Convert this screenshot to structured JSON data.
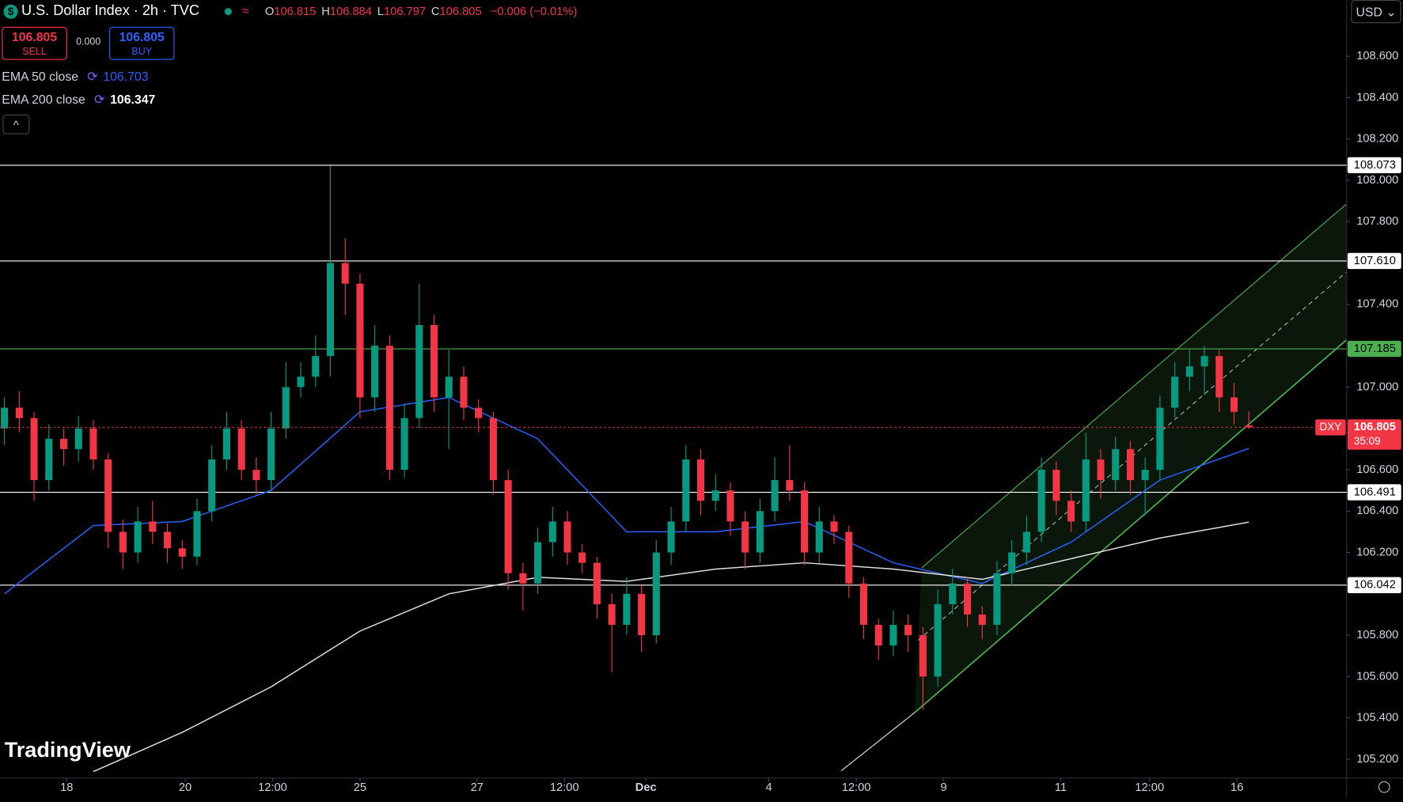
{
  "header": {
    "title": "U.S. Dollar Index · 2h · TVC",
    "ohlc": [
      {
        "label": "O",
        "value": "106.815"
      },
      {
        "label": "H",
        "value": "106.884"
      },
      {
        "label": "L",
        "value": "106.797"
      },
      {
        "label": "C",
        "value": "106.805"
      }
    ],
    "change": "−0.006 (−0.01%)",
    "sell": {
      "price": "106.805",
      "label": "SELL"
    },
    "spread": "0.000",
    "buy": {
      "price": "106.805",
      "label": "BUY"
    },
    "indicators": [
      {
        "name": "EMA 50 close",
        "value": "106.703"
      },
      {
        "name": "EMA 200 close",
        "value": "106.347"
      }
    ],
    "currency": "USD",
    "logo": "TradingView"
  },
  "chart_data": {
    "type": "candlestick",
    "up_color": "#089981",
    "down_color": "#f23645",
    "ylim": [
      105.109,
      108.872
    ],
    "yticks": [
      {
        "value": 105.2,
        "label": "105.200"
      },
      {
        "value": 105.4,
        "label": "105.400"
      },
      {
        "value": 105.6,
        "label": "105.600"
      },
      {
        "value": 105.8,
        "label": "105.800"
      },
      {
        "value": 106.2,
        "label": "106.200"
      },
      {
        "value": 106.4,
        "label": "106.400"
      },
      {
        "value": 106.6,
        "label": "106.600"
      },
      {
        "value": 107,
        "label": "107.000"
      },
      {
        "value": 107.4,
        "label": "107.400"
      },
      {
        "value": 107.8,
        "label": "107.800"
      },
      {
        "value": 108,
        "label": "108.000"
      },
      {
        "value": 108.2,
        "label": "108.200"
      },
      {
        "value": 108.4,
        "label": "108.400"
      },
      {
        "value": 108.6,
        "label": "108.600"
      }
    ],
    "xlim": [
      -0.3,
      90.6
    ],
    "xticks": [
      {
        "value": 4.2,
        "label": "18"
      },
      {
        "value": 12.2,
        "label": "20"
      },
      {
        "value": 18.1,
        "label": "12:00"
      },
      {
        "value": 24,
        "label": "25"
      },
      {
        "value": 31.9,
        "label": "27"
      },
      {
        "value": 37.8,
        "label": "12:00"
      },
      {
        "value": 43.3,
        "label": "Dec"
      },
      {
        "value": 51.6,
        "label": "4"
      },
      {
        "value": 57.5,
        "label": "12:00"
      },
      {
        "value": 63.4,
        "label": "9"
      },
      {
        "value": 71.3,
        "label": "11"
      },
      {
        "value": 77.3,
        "label": "12:00"
      },
      {
        "value": 83.2,
        "label": "16"
      }
    ],
    "candles": [
      [
        106.8,
        106.95,
        106.72,
        106.9
      ],
      [
        106.9,
        106.98,
        106.78,
        106.85
      ],
      [
        106.85,
        106.88,
        106.45,
        106.55
      ],
      [
        106.55,
        106.82,
        106.5,
        106.75
      ],
      [
        106.75,
        106.8,
        106.62,
        106.7
      ],
      [
        106.7,
        106.86,
        106.64,
        106.8
      ],
      [
        106.8,
        106.84,
        106.6,
        106.65
      ],
      [
        106.65,
        106.68,
        106.22,
        106.3
      ],
      [
        106.3,
        106.36,
        106.12,
        106.2
      ],
      [
        106.2,
        106.42,
        106.15,
        106.35
      ],
      [
        106.35,
        106.45,
        106.24,
        106.3
      ],
      [
        106.3,
        106.34,
        106.15,
        106.22
      ],
      [
        106.22,
        106.26,
        106.12,
        106.18
      ],
      [
        106.18,
        106.46,
        106.14,
        106.4
      ],
      [
        106.4,
        106.72,
        106.35,
        106.65
      ],
      [
        106.65,
        106.88,
        106.6,
        106.8
      ],
      [
        106.8,
        106.84,
        106.55,
        106.6
      ],
      [
        106.6,
        106.66,
        106.48,
        106.55
      ],
      [
        106.55,
        106.88,
        106.5,
        106.8
      ],
      [
        106.8,
        107.12,
        106.75,
        107.0
      ],
      [
        107.0,
        107.12,
        106.95,
        107.05
      ],
      [
        107.05,
        107.25,
        107.0,
        107.15
      ],
      [
        107.15,
        108.07,
        107.05,
        107.6
      ],
      [
        107.6,
        107.72,
        107.35,
        107.5
      ],
      [
        107.5,
        107.55,
        106.85,
        106.95
      ],
      [
        106.95,
        107.3,
        106.88,
        107.2
      ],
      [
        107.2,
        107.25,
        106.55,
        106.6
      ],
      [
        106.6,
        106.92,
        106.56,
        106.85
      ],
      [
        106.85,
        107.5,
        106.8,
        107.3
      ],
      [
        107.3,
        107.35,
        106.88,
        106.95
      ],
      [
        106.95,
        107.18,
        106.7,
        107.05
      ],
      [
        107.05,
        107.1,
        106.84,
        106.9
      ],
      [
        106.9,
        106.94,
        106.78,
        106.85
      ],
      [
        106.85,
        106.88,
        106.48,
        106.55
      ],
      [
        106.55,
        106.6,
        106.02,
        106.1
      ],
      [
        106.1,
        106.15,
        105.92,
        106.05
      ],
      [
        106.05,
        106.32,
        106.0,
        106.25
      ],
      [
        106.25,
        106.42,
        106.18,
        106.35
      ],
      [
        106.35,
        106.4,
        106.14,
        106.2
      ],
      [
        106.2,
        106.24,
        106.1,
        106.15
      ],
      [
        106.15,
        106.18,
        105.88,
        105.95
      ],
      [
        105.95,
        106.0,
        105.62,
        105.85
      ],
      [
        105.85,
        106.08,
        105.8,
        106.0
      ],
      [
        106.0,
        106.04,
        105.72,
        105.8
      ],
      [
        105.8,
        106.26,
        105.76,
        106.2
      ],
      [
        106.2,
        106.42,
        106.14,
        106.35
      ],
      [
        106.35,
        106.72,
        106.3,
        106.65
      ],
      [
        106.65,
        106.7,
        106.38,
        106.45
      ],
      [
        106.45,
        106.58,
        106.4,
        106.5
      ],
      [
        106.5,
        106.54,
        106.28,
        106.35
      ],
      [
        106.35,
        106.4,
        106.12,
        106.2
      ],
      [
        106.2,
        106.46,
        106.15,
        106.4
      ],
      [
        106.4,
        106.66,
        106.35,
        106.55
      ],
      [
        106.55,
        106.72,
        106.45,
        106.5
      ],
      [
        106.5,
        106.54,
        106.14,
        106.2
      ],
      [
        106.2,
        106.42,
        106.15,
        106.35
      ],
      [
        106.35,
        106.38,
        106.24,
        106.3
      ],
      [
        106.3,
        106.33,
        105.98,
        106.05
      ],
      [
        106.05,
        106.08,
        105.78,
        105.85
      ],
      [
        105.85,
        105.88,
        105.68,
        105.75
      ],
      [
        105.75,
        105.92,
        105.7,
        105.85
      ],
      [
        105.85,
        105.9,
        105.72,
        105.8
      ],
      [
        105.8,
        105.84,
        105.44,
        105.6
      ],
      [
        105.6,
        106.02,
        105.55,
        105.95
      ],
      [
        105.95,
        106.12,
        105.9,
        106.05
      ],
      [
        106.05,
        106.08,
        105.84,
        105.9
      ],
      [
        105.9,
        105.94,
        105.78,
        105.85
      ],
      [
        105.85,
        106.16,
        105.8,
        106.1
      ],
      [
        106.1,
        106.26,
        106.04,
        106.2
      ],
      [
        106.2,
        106.38,
        106.14,
        106.3
      ],
      [
        106.3,
        106.66,
        106.25,
        106.6
      ],
      [
        106.6,
        106.64,
        106.38,
        106.45
      ],
      [
        106.45,
        106.5,
        106.3,
        106.35
      ],
      [
        106.35,
        106.78,
        106.3,
        106.65
      ],
      [
        106.65,
        106.7,
        106.46,
        106.55
      ],
      [
        106.55,
        106.76,
        106.5,
        106.7
      ],
      [
        106.7,
        106.74,
        106.48,
        106.55
      ],
      [
        106.55,
        106.66,
        106.38,
        106.6
      ],
      [
        106.6,
        106.96,
        106.55,
        106.9
      ],
      [
        106.9,
        107.12,
        106.85,
        107.05
      ],
      [
        107.05,
        107.18,
        106.98,
        107.1
      ],
      [
        107.1,
        107.2,
        106.96,
        107.15
      ],
      [
        107.15,
        107.18,
        106.88,
        106.95
      ],
      [
        106.95,
        107.02,
        106.82,
        106.88
      ],
      [
        106.815,
        106.884,
        106.797,
        106.805
      ]
    ],
    "series": [
      {
        "color": "#2962ff",
        "x": [
          0,
          6,
          12,
          18,
          24,
          30,
          36,
          42,
          48,
          54,
          60,
          66,
          72,
          78,
          84
        ],
        "values": [
          106.0,
          106.33,
          106.35,
          106.5,
          106.88,
          106.95,
          106.75,
          106.3,
          106.3,
          106.35,
          106.15,
          106.05,
          106.25,
          106.55,
          106.703
        ]
      },
      {
        "color": "#e0e0e0",
        "x": [
          6,
          12,
          18,
          24,
          30,
          36,
          42,
          48,
          54,
          60,
          66,
          72,
          78,
          84
        ],
        "values": [
          105.14,
          105.33,
          105.55,
          105.82,
          106.0,
          106.08,
          106.06,
          106.12,
          106.15,
          106.12,
          106.07,
          106.17,
          106.27,
          106.347
        ]
      }
    ],
    "levels": [
      {
        "value": 108.073,
        "color": "#ffffff"
      },
      {
        "value": 107.61,
        "label": "107.610",
        "color": "#ffffff"
      },
      {
        "value": 107.185,
        "color": "#4caf50"
      },
      {
        "value": 106.491,
        "color": "#ffffff"
      },
      {
        "value": 106.042,
        "color": "#ffffff"
      }
    ],
    "price": {
      "name": "DXY",
      "value": 106.805,
      "countdown": "35:09",
      "color": "#f23645"
    }
  }
}
